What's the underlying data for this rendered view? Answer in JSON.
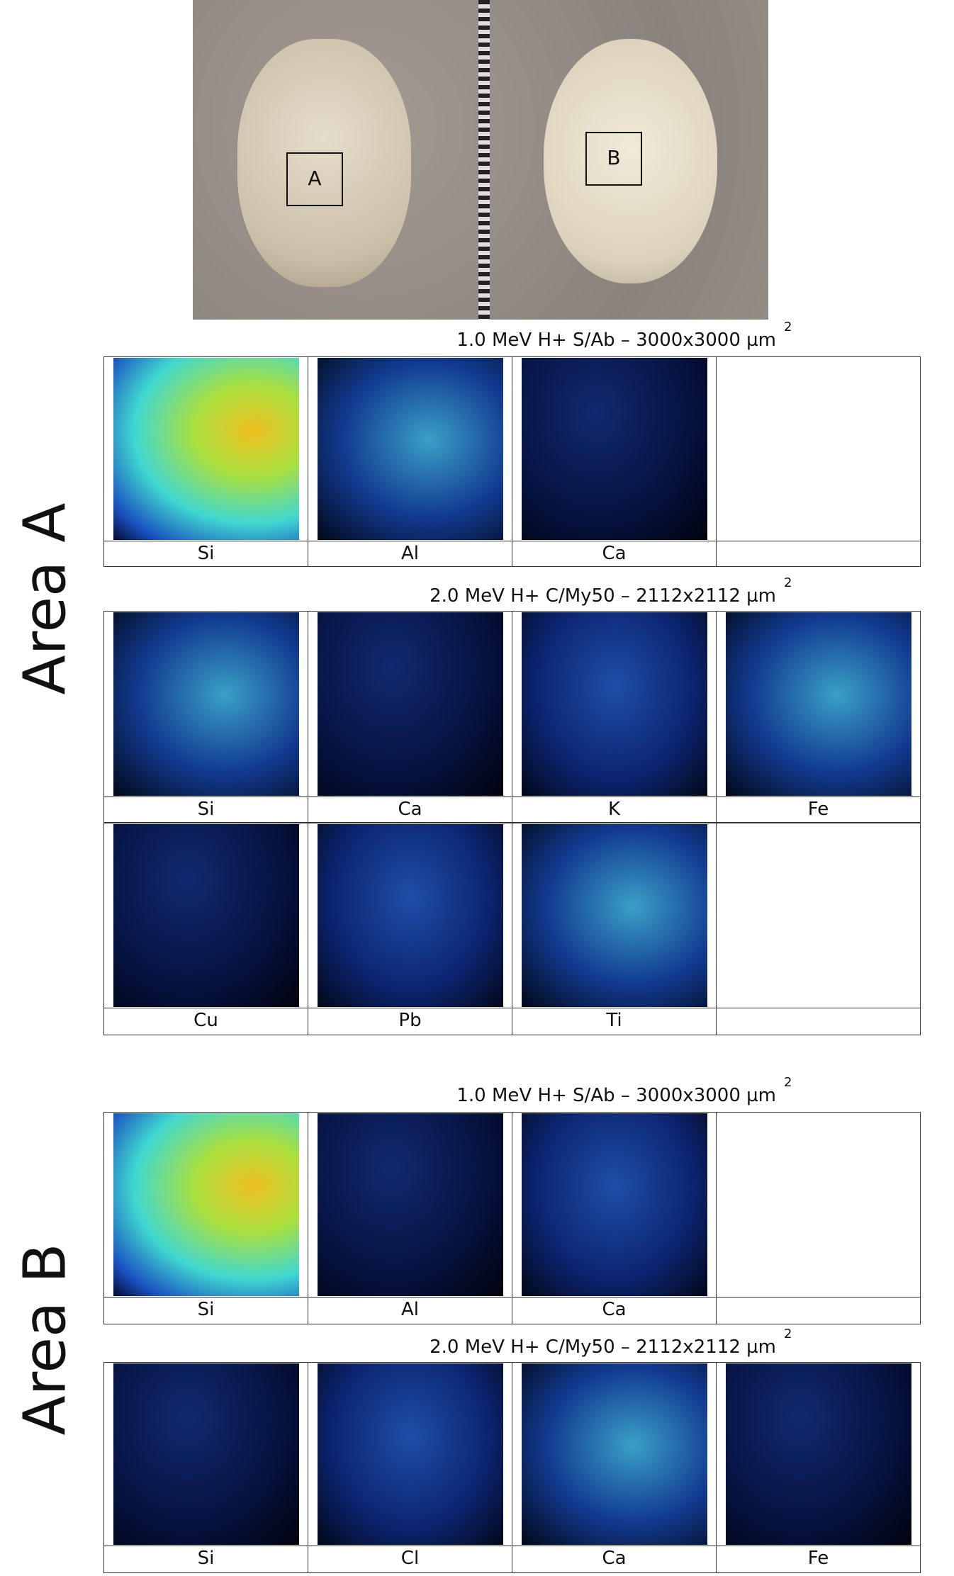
{
  "photo": {
    "labels": [
      "A",
      "B"
    ]
  },
  "areas": [
    {
      "label": "Area  A",
      "groups": [
        {
          "title": "1.0 MeV H+ S/Ab – 3000x3000 µm",
          "exponent": "2",
          "rows": [
            [
              "Si",
              "Al",
              "Ca"
            ]
          ]
        },
        {
          "title": "2.0 MeV H+ C/My50 – 2112x2112 µm",
          "exponent": "2",
          "rows": [
            [
              "Si",
              "Ca",
              "K",
              "Fe"
            ],
            [
              "Cu",
              "Pb",
              "Ti"
            ]
          ]
        }
      ]
    },
    {
      "label": "Area  B",
      "groups": [
        {
          "title": "1.0 MeV H+ S/Ab – 3000x3000 µm",
          "exponent": "2",
          "rows": [
            [
              "Si",
              "Al",
              "Ca"
            ]
          ]
        },
        {
          "title": "2.0 MeV H+ C/My50 – 2112x2112 µm",
          "exponent": "2",
          "rows": [
            [
              "Si",
              "Cl",
              "Ca",
              "Fe"
            ]
          ]
        }
      ]
    }
  ]
}
